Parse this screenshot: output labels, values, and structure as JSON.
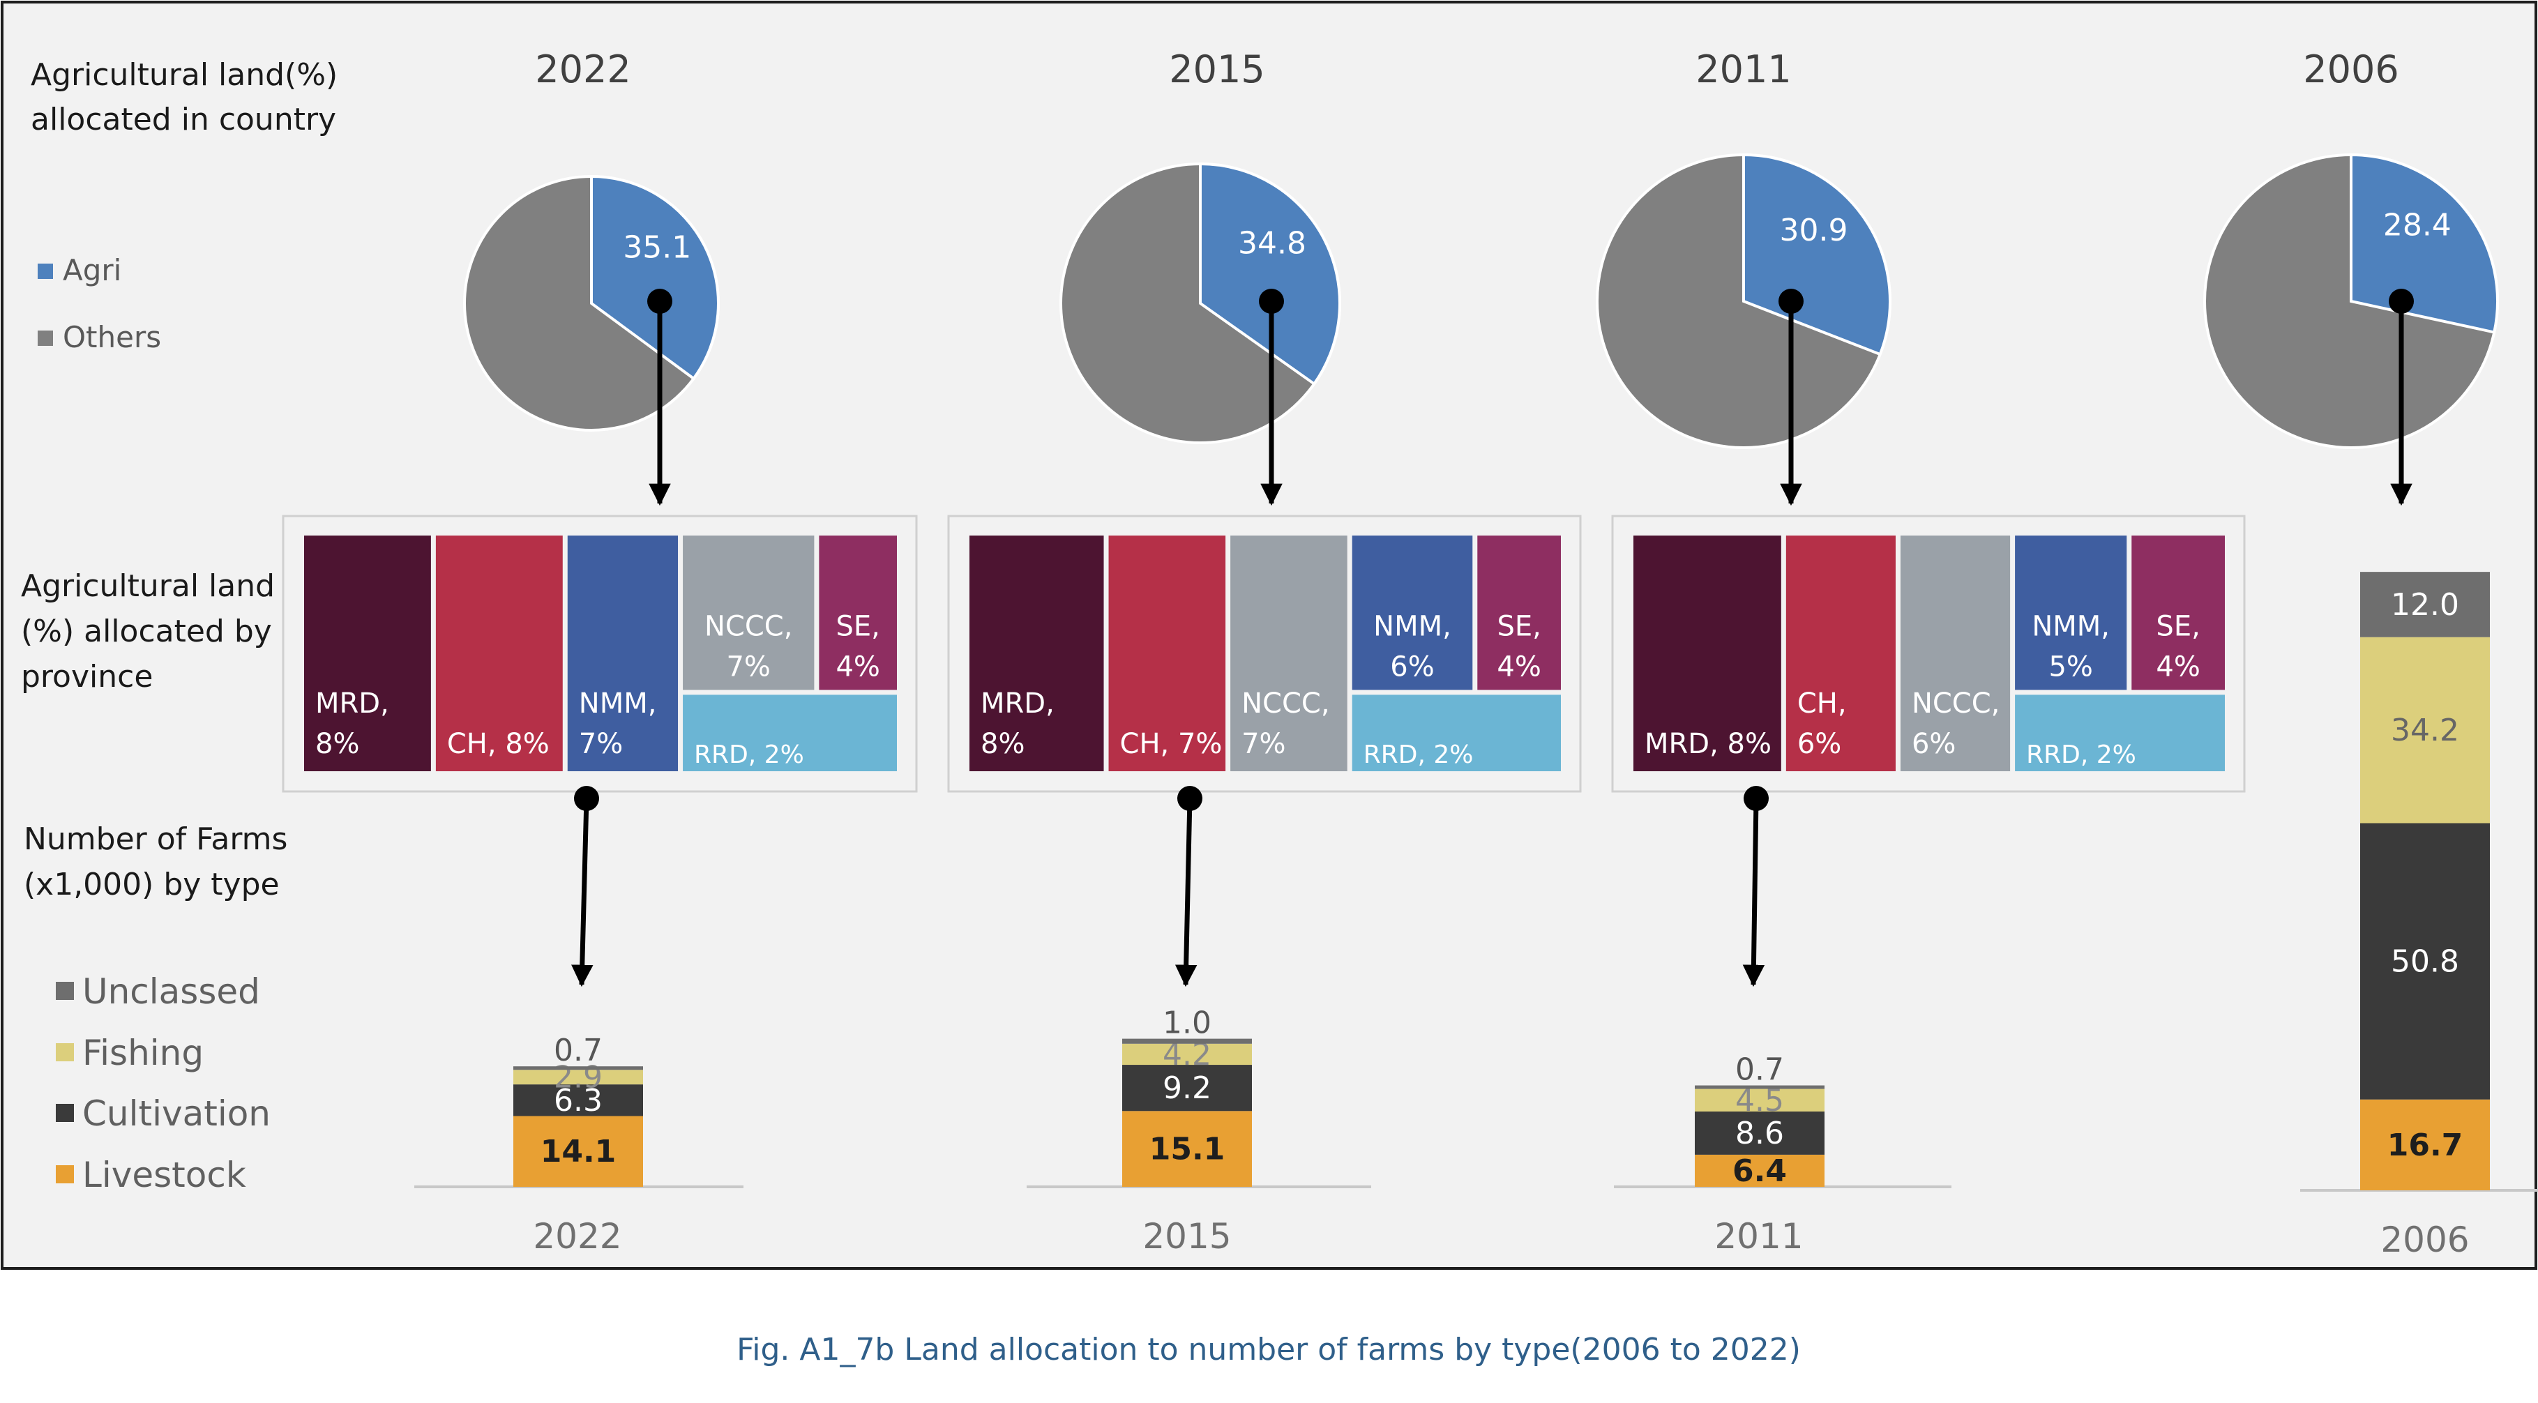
{
  "labels": {
    "row1": [
      "Agricultural land(%)",
      "allocated in country"
    ],
    "row2": [
      "Agricultural land",
      "(%) allocated by",
      "province"
    ],
    "row3": [
      "Number of Farms",
      "(x1,000) by type"
    ]
  },
  "caption": "Fig. A1_7b Land allocation to number of farms by type(2006 to 2022)",
  "colors": {
    "agri": "#4e81bd",
    "others": "#808080",
    "unclassed": "#6e6e6e",
    "fishing": "#dccf7c",
    "cultivation": "#3a3a3a",
    "livestock": "#e8a033",
    "MRD": "#4d1431",
    "CH": "#b53048",
    "NMM": "#3f5ea0",
    "NCCC": "#9aa1a8",
    "SE": "#8e2e61",
    "RRD": "#6bb5d4"
  },
  "chart_data": [
    {
      "type": "pie",
      "title": "Agricultural land(%) allocated in country",
      "legend": [
        "Agri",
        "Others"
      ],
      "years": [
        {
          "year": "2022",
          "agri": 35.1,
          "label": "35.1"
        },
        {
          "year": "2015",
          "agri": 34.8,
          "label": "34.8"
        },
        {
          "year": "2011",
          "agri": 30.9,
          "label": "30.9"
        },
        {
          "year": "2006",
          "agri": 28.4,
          "label": "28.4"
        }
      ]
    },
    {
      "type": "treemap",
      "title": "Agricultural land (%) allocated by province",
      "years": [
        {
          "year": "2022",
          "tiles": [
            {
              "key": "MRD",
              "lines": [
                "MRD,",
                "8%"
              ],
              "value": 8
            },
            {
              "key": "CH",
              "lines": [
                "CH, 8%"
              ],
              "value": 8
            },
            {
              "key": "NMM",
              "lines": [
                "NMM,",
                "7%"
              ],
              "value": 7
            },
            {
              "key": "NCCC",
              "lines": [
                "NCCC,",
                "7%"
              ],
              "value": 7
            },
            {
              "key": "SE",
              "lines": [
                "SE,",
                "4%"
              ],
              "value": 4
            },
            {
              "key": "RRD",
              "lines": [
                "RRD, 2%"
              ],
              "value": 2
            }
          ]
        },
        {
          "year": "2015",
          "tiles": [
            {
              "key": "MRD",
              "lines": [
                "MRD,",
                "8%"
              ],
              "value": 8
            },
            {
              "key": "CH",
              "lines": [
                "CH, 7%"
              ],
              "value": 7
            },
            {
              "key": "NCCC",
              "lines": [
                "NCCC,",
                "7%"
              ],
              "value": 7
            },
            {
              "key": "NMM",
              "lines": [
                "NMM,",
                "6%"
              ],
              "value": 6
            },
            {
              "key": "SE",
              "lines": [
                "SE,",
                "4%"
              ],
              "value": 4
            },
            {
              "key": "RRD",
              "lines": [
                "RRD, 2%"
              ],
              "value": 2
            }
          ]
        },
        {
          "year": "2011",
          "tiles": [
            {
              "key": "MRD",
              "lines": [
                "MRD, 8%"
              ],
              "value": 8
            },
            {
              "key": "CH",
              "lines": [
                "CH,",
                "6%"
              ],
              "value": 6
            },
            {
              "key": "NCCC",
              "lines": [
                "NCCC,",
                "6%"
              ],
              "value": 6
            },
            {
              "key": "NMM",
              "lines": [
                "NMM,",
                "5%"
              ],
              "value": 5
            },
            {
              "key": "SE",
              "lines": [
                "SE,",
                "4%"
              ],
              "value": 4
            },
            {
              "key": "RRD",
              "lines": [
                "RRD, 2%"
              ],
              "value": 2
            }
          ]
        }
      ]
    },
    {
      "type": "bar",
      "stacked": true,
      "title": "Number of Farms (x1,000) by type",
      "categories": [
        "2022",
        "2015",
        "2011",
        "2006"
      ],
      "series": [
        {
          "name": "Livestock",
          "values": [
            14.1,
            15.1,
            6.4,
            16.7
          ]
        },
        {
          "name": "Cultivation",
          "values": [
            6.3,
            9.2,
            8.6,
            50.8
          ]
        },
        {
          "name": "Fishing",
          "values": [
            2.9,
            4.2,
            4.5,
            34.2
          ]
        },
        {
          "name": "Unclassed",
          "values": [
            0.7,
            1.0,
            0.7,
            12.0
          ]
        }
      ],
      "legend_order": [
        "Unclassed",
        "Fishing",
        "Cultivation",
        "Livestock"
      ]
    }
  ]
}
